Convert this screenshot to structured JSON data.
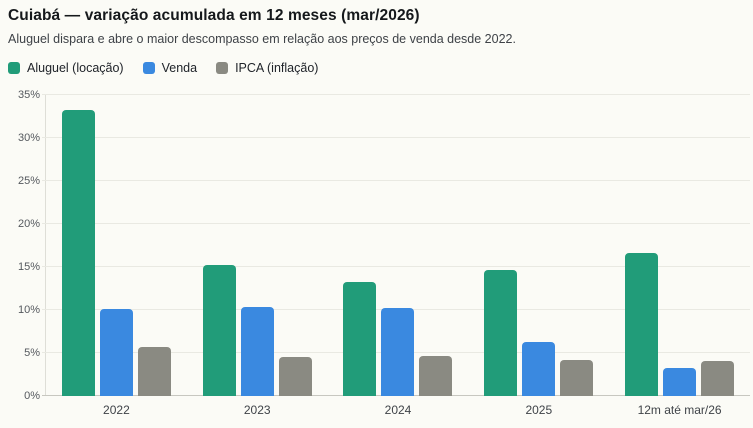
{
  "header": {
    "title": "Cuiabá — variação acumulada em 12 meses (mar/2026)",
    "subtitle": "Aluguel dispara e abre o maior descompasso em relação aos preços de venda desde 2022."
  },
  "colors": {
    "aluguel": "#219c79",
    "venda": "#3a89e0",
    "ipca": "#8a8a82",
    "background": "#fbfbf6"
  },
  "legend": [
    {
      "label": "Aluguel (locação)",
      "color": "#219c79"
    },
    {
      "label": "Venda",
      "color": "#3a89e0"
    },
    {
      "label": "IPCA (inflação)",
      "color": "#8a8a82"
    }
  ],
  "chart_data": {
    "type": "bar",
    "title": "Cuiabá — variação acumulada em 12 meses (mar/2026)",
    "subtitle": "Aluguel dispara e abre o maior descompasso em relação aos preços de venda desde 2022.",
    "categories": [
      "2022",
      "2023",
      "2024",
      "2025",
      "12m até mar/26"
    ],
    "series": [
      {
        "name": "Aluguel (locação)",
        "color": "#219c79",
        "values": [
          33.3,
          15.2,
          13.2,
          14.6,
          16.6
        ]
      },
      {
        "name": "Venda",
        "color": "#3a89e0",
        "values": [
          10.1,
          10.4,
          10.2,
          6.3,
          3.3
        ]
      },
      {
        "name": "IPCA (inflação)",
        "color": "#8a8a82",
        "values": [
          5.7,
          4.5,
          4.7,
          4.2,
          4.1
        ]
      }
    ],
    "xlabel": "",
    "ylabel": "",
    "ylim": [
      0,
      35
    ],
    "y_ticks": [
      0,
      5,
      10,
      15,
      20,
      25,
      30,
      35
    ],
    "y_tick_suffix": "%",
    "grid": true,
    "legend_position": "top"
  }
}
